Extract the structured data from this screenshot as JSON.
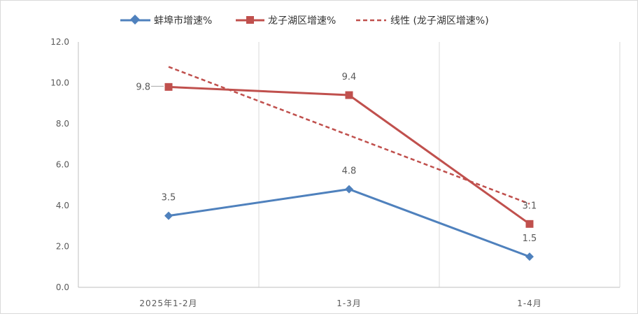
{
  "chart_data": {
    "type": "line",
    "categories": [
      "2025年1-2月",
      "1-3月",
      "1-4月"
    ],
    "ylim": [
      0,
      12
    ],
    "yticks": [
      "0.0",
      "2.0",
      "4.0",
      "6.0",
      "8.0",
      "10.0",
      "12.0"
    ],
    "grid": "vertical",
    "legend": "top",
    "series": [
      {
        "name": "蚌埠市增速%",
        "values": [
          3.5,
          4.8,
          1.5
        ],
        "labels": [
          "3.5",
          "4.8",
          "1.5"
        ],
        "color": "#4f81bd",
        "marker": "diamond"
      },
      {
        "name": "龙子湖区增速%",
        "values": [
          9.8,
          9.4,
          3.1
        ],
        "labels": [
          "9.8",
          "9.4",
          "3.1"
        ],
        "color": "#c0504d",
        "marker": "square"
      }
    ],
    "trendline": {
      "name": "线性 (龙子湖区增速%)",
      "color": "#c0504d",
      "style": "dashed"
    }
  }
}
